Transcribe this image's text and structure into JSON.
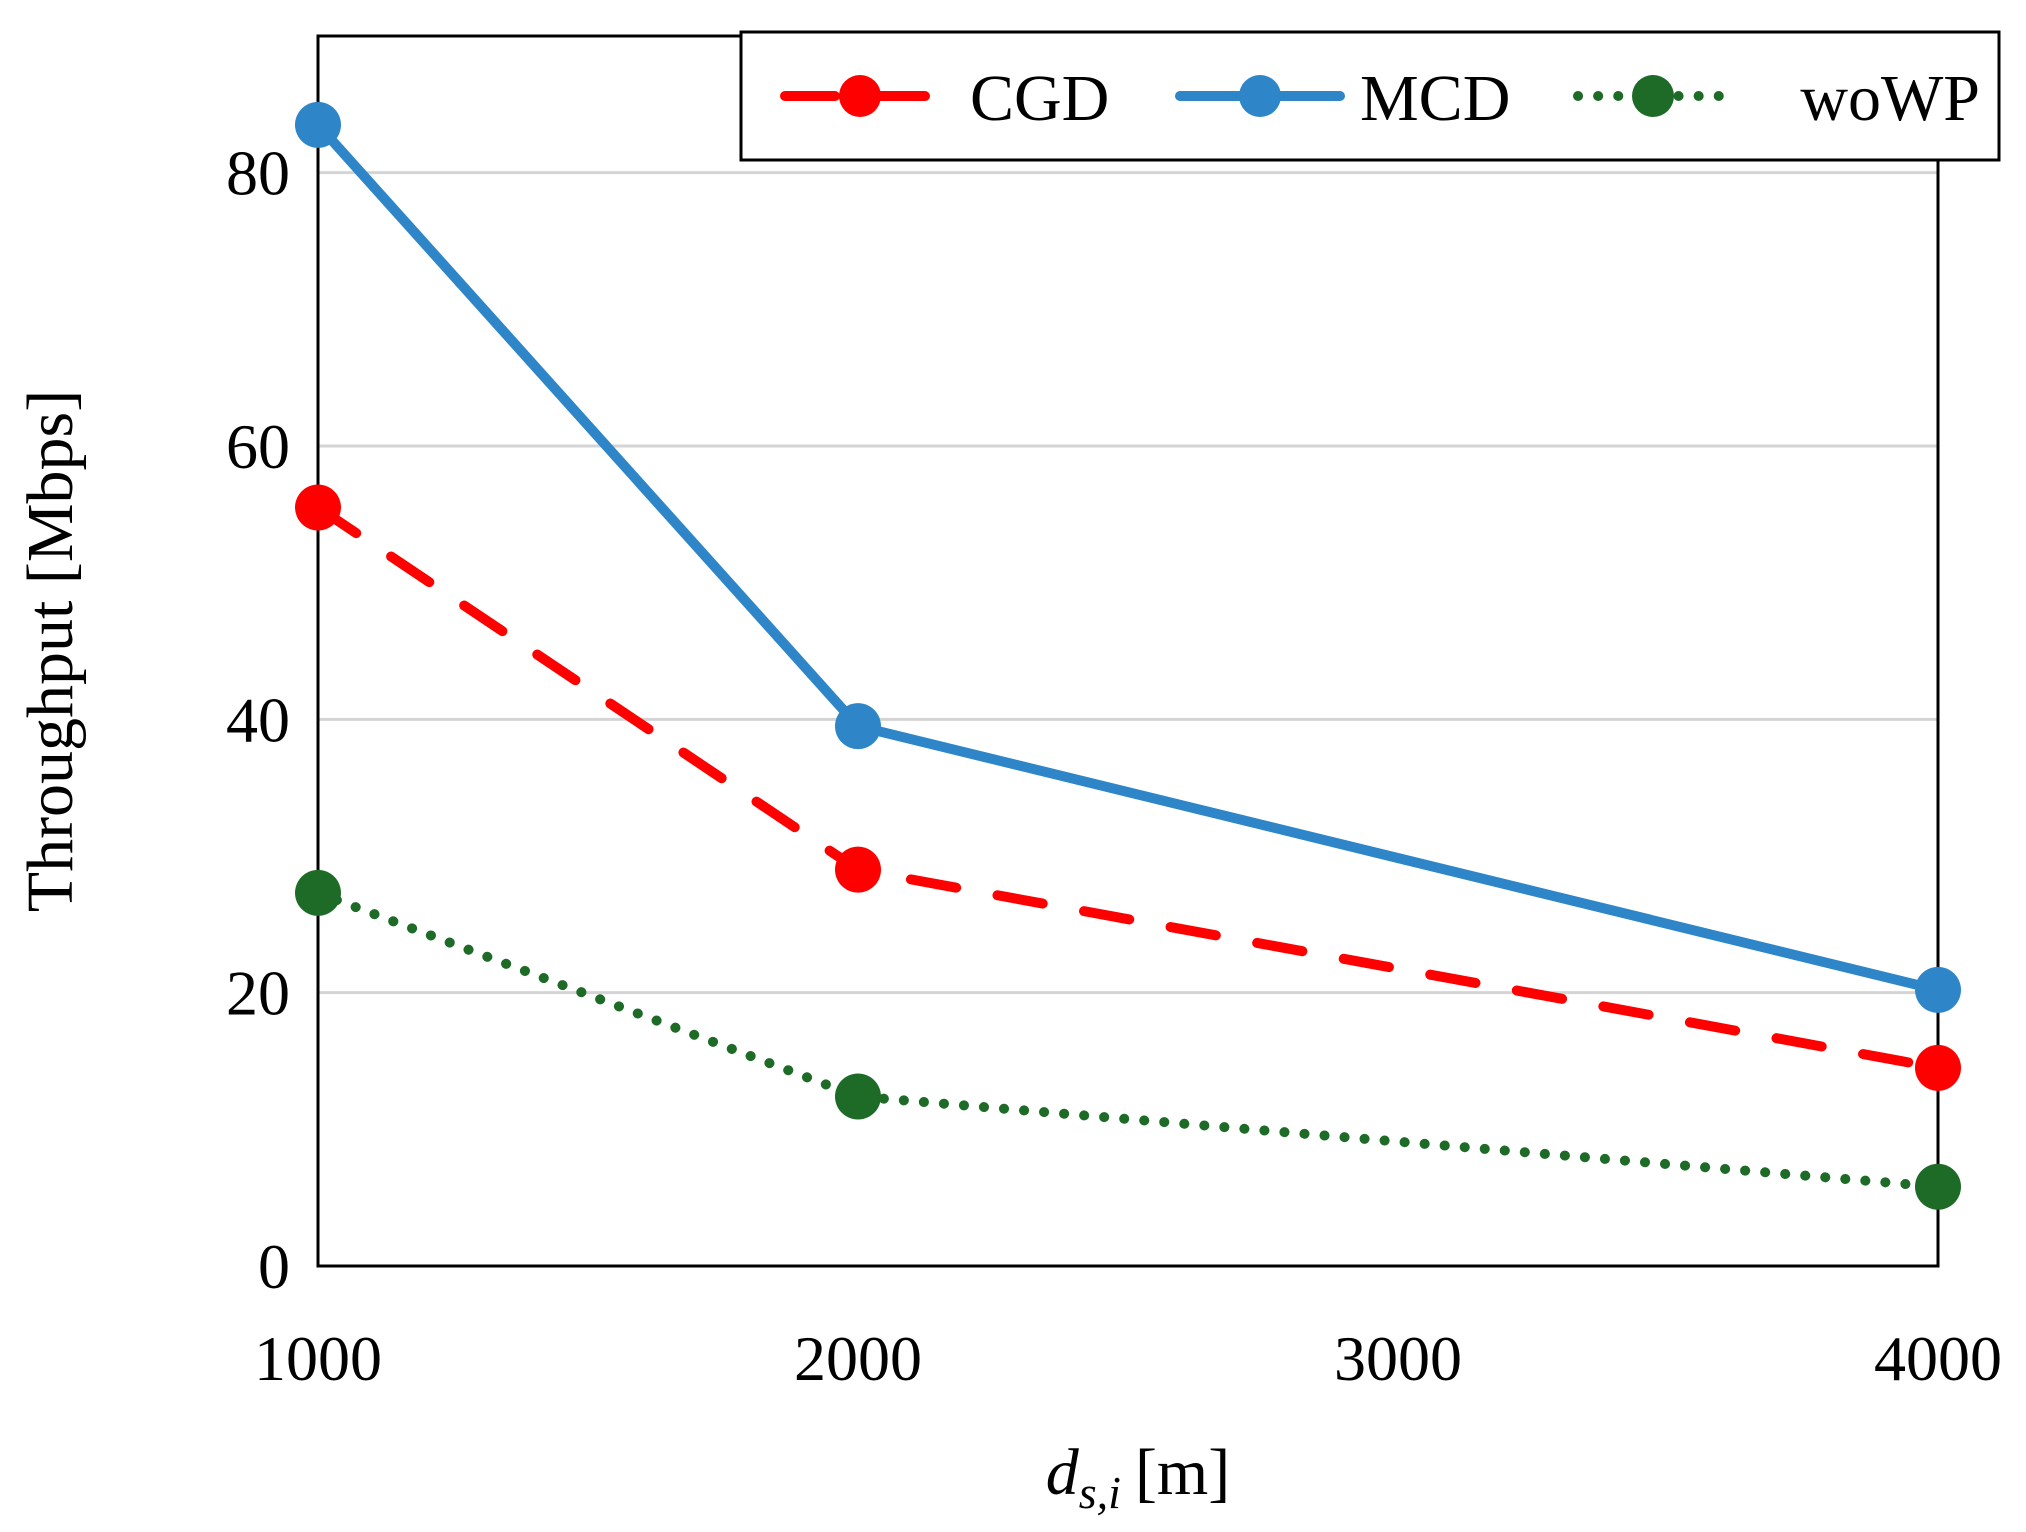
{
  "chart_data": {
    "type": "line",
    "title": "",
    "xlabel": {
      "main": "d",
      "subscript": "s,i",
      "unit": "[m]"
    },
    "ylabel": "Throughput [Mbps]",
    "x": [
      1000,
      2000,
      4000
    ],
    "xlim": [
      1000,
      4000
    ],
    "ylim": [
      0,
      90
    ],
    "xticks": [
      "1000",
      "2000",
      "3000",
      "4000"
    ],
    "yticks": [
      "0",
      "20",
      "40",
      "60",
      "80"
    ],
    "grid": "horizontal",
    "legend_position": "top-right",
    "series": [
      {
        "name": "CGD",
        "values": [
          55.5,
          29,
          14.5
        ],
        "color": "#ff0000",
        "style": "dashed"
      },
      {
        "name": "MCD",
        "values": [
          83.5,
          39.5,
          20.2
        ],
        "color": "#2e86c8",
        "style": "solid"
      },
      {
        "name": "woWP",
        "values": [
          27.3,
          12.4,
          5.8
        ],
        "color": "#1e6b28",
        "style": "dotted"
      }
    ]
  }
}
